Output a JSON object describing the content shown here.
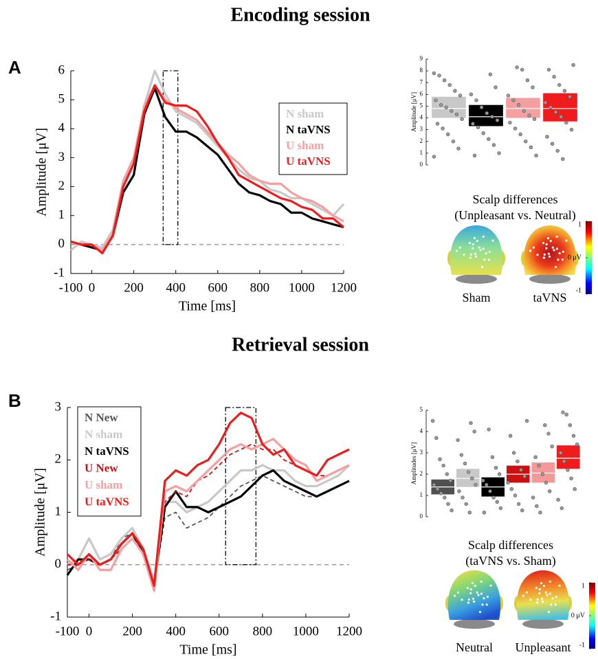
{
  "sections": [
    {
      "title": "Encoding session",
      "label": "A"
    },
    {
      "title": "Retrieval session",
      "label": "B"
    }
  ],
  "chart_data": [
    {
      "type": "line",
      "xlabel": "Time [ms]",
      "ylabel": "Amplitude [μV]",
      "xlim": [
        -100,
        1200
      ],
      "ylim": [
        -1,
        6
      ],
      "xticks": [
        -100,
        0,
        200,
        400,
        600,
        800,
        1000,
        1200
      ],
      "yticks": [
        -1,
        0,
        1,
        2,
        3,
        4,
        5,
        6
      ],
      "reference_line": 0,
      "highlight": {
        "x": [
          340,
          410
        ],
        "y": [
          0,
          6
        ]
      },
      "legend": "upper right",
      "x": [
        -100,
        -50,
        0,
        50,
        100,
        150,
        200,
        250,
        300,
        350,
        400,
        450,
        500,
        550,
        600,
        650,
        700,
        750,
        800,
        850,
        900,
        950,
        1000,
        1050,
        1100,
        1150,
        1200
      ],
      "series": [
        {
          "name": "N sham",
          "color": "#c8c8c8",
          "dashed": false,
          "values": [
            -0.2,
            0.1,
            0,
            -0.1,
            0.5,
            2.2,
            2.9,
            4.8,
            6.0,
            5.2,
            4.6,
            4.4,
            4.2,
            3.8,
            3.4,
            3.0,
            2.6,
            2.3,
            2.2,
            1.9,
            1.8,
            1.6,
            1.6,
            1.4,
            1.2,
            1.0,
            1.4
          ]
        },
        {
          "name": "N taVNS",
          "color": "#000000",
          "dashed": false,
          "values": [
            0.1,
            0,
            -0.1,
            -0.2,
            0.3,
            1.8,
            2.4,
            4.5,
            5.4,
            4.4,
            3.9,
            3.9,
            3.7,
            3.4,
            3.1,
            2.6,
            2.1,
            1.8,
            1.7,
            1.5,
            1.4,
            1.1,
            1.1,
            0.9,
            0.8,
            0.7,
            0.6
          ]
        },
        {
          "name": "U sham",
          "color": "#f4a0a0",
          "dashed": false,
          "values": [
            0.1,
            0,
            0,
            -0.2,
            0.4,
            2.2,
            3.0,
            4.8,
            5.5,
            5.0,
            4.7,
            4.5,
            4.3,
            3.9,
            3.5,
            3.1,
            2.8,
            2.4,
            2.2,
            2.1,
            2.1,
            1.8,
            1.6,
            1.5,
            1.3,
            1.0,
            0.8
          ]
        },
        {
          "name": "U taVNS",
          "color": "#ee1c1c",
          "dashed": false,
          "values": [
            0.1,
            0,
            0,
            -0.3,
            0.3,
            2.0,
            2.8,
            4.6,
            5.5,
            4.9,
            4.8,
            4.8,
            4.6,
            4.1,
            3.5,
            3.0,
            2.4,
            2.2,
            2.0,
            1.8,
            1.6,
            1.5,
            1.3,
            1.2,
            0.9,
            0.9,
            0.6
          ]
        }
      ]
    },
    {
      "type": "box",
      "ylabel": "Amplitude [μV]",
      "ylim": [
        0,
        9
      ],
      "yticks": [
        0,
        1,
        2,
        3,
        4,
        5,
        6,
        7,
        8,
        9
      ],
      "groups": [
        {
          "color": "#c8c8c8",
          "mean": 4.8,
          "ci": [
            4.0,
            5.8
          ],
          "points": [
            7.8,
            7.6,
            7.2,
            6.8,
            6.3,
            5.9,
            5.5,
            5.1,
            4.9,
            4.6,
            4.3,
            3.9,
            3.5,
            3.1,
            2.6,
            2.0,
            1.4,
            0.7
          ]
        },
        {
          "color": "#000000",
          "mean": 4.1,
          "ci": [
            3.3,
            5.1
          ],
          "points": [
            7.7,
            6.6,
            6.0,
            5.5,
            4.9,
            4.4,
            4.1,
            3.8,
            3.5,
            3.2,
            2.7,
            2.2,
            1.7,
            1.0,
            0.8
          ]
        },
        {
          "color": "#f4a0a0",
          "mean": 4.8,
          "ci": [
            4.0,
            5.7
          ],
          "points": [
            8.3,
            8.1,
            7.2,
            6.6,
            5.9,
            5.5,
            5.1,
            4.6,
            4.2,
            3.9,
            3.6,
            3.1,
            2.6,
            2.0,
            1.5,
            0.8
          ]
        },
        {
          "color": "#ee1c1c",
          "mean": 4.8,
          "ci": [
            3.7,
            6.1
          ],
          "points": [
            8.5,
            8.1,
            7.5,
            6.8,
            6.3,
            5.8,
            5.3,
            4.9,
            4.5,
            4.1,
            3.6,
            3.0,
            2.4,
            1.8,
            1.2,
            0.5
          ]
        }
      ]
    },
    {
      "type": "topomap",
      "title": [
        "Scalp differences",
        "(Unpleasant vs. Neutral)"
      ],
      "labels": [
        "Sham",
        "taVNS"
      ],
      "clim": [
        -1,
        1
      ],
      "cticks": [
        1,
        {
          "value": 0,
          "label": "0 μV"
        },
        -1
      ]
    },
    {
      "type": "line",
      "xlabel": "Time [ms]",
      "ylabel": "Amplitude [μV]",
      "xlim": [
        -100,
        1200
      ],
      "ylim": [
        -1,
        3
      ],
      "xticks": [
        -100,
        0,
        200,
        400,
        600,
        800,
        1000,
        1200
      ],
      "yticks": [
        -1,
        0,
        1,
        2,
        3
      ],
      "reference_line": 0,
      "highlight": {
        "x": [
          630,
          770
        ],
        "y": [
          0,
          3
        ]
      },
      "legend": "upper left",
      "x": [
        -100,
        -50,
        0,
        50,
        100,
        150,
        200,
        250,
        300,
        350,
        400,
        450,
        500,
        550,
        600,
        650,
        700,
        750,
        800,
        850,
        900,
        950,
        1000,
        1050,
        1100,
        1150,
        1200
      ],
      "series": [
        {
          "name": "N New",
          "color": "#555555",
          "dashed": true,
          "values": [
            -0.1,
            0,
            0.1,
            0,
            0.1,
            0.5,
            0.6,
            0.3,
            -0.4,
            0.9,
            1.0,
            0.7,
            0.8,
            0.9,
            1.1,
            1.3,
            1.5,
            1.6,
            1.7,
            1.6,
            1.5,
            1.4,
            1.3,
            1.3,
            1.4,
            1.5,
            1.6
          ]
        },
        {
          "name": "N sham",
          "color": "#c8c8c8",
          "dashed": false,
          "values": [
            0,
            0.1,
            0.5,
            0.1,
            0.2,
            0.5,
            0.7,
            0.3,
            -0.3,
            1.2,
            1.2,
            1.0,
            1.1,
            1.2,
            1.4,
            1.6,
            1.8,
            1.8,
            1.9,
            1.8,
            1.8,
            1.6,
            1.5,
            1.5,
            1.6,
            1.7,
            1.9
          ]
        },
        {
          "name": "N taVNS",
          "color": "#000000",
          "dashed": false,
          "values": [
            -0.2,
            0.1,
            0.1,
            0,
            0.1,
            0.4,
            0.6,
            0.2,
            -0.4,
            1.1,
            1.4,
            1.1,
            1.1,
            1.0,
            1.1,
            1.2,
            1.3,
            1.5,
            1.7,
            1.8,
            1.6,
            1.5,
            1.4,
            1.3,
            1.4,
            1.5,
            1.6
          ]
        },
        {
          "name": "U New",
          "color": "#cc1010",
          "dashed": true,
          "values": [
            0,
            0,
            0.1,
            0,
            0.1,
            0.3,
            0.5,
            0.3,
            -0.4,
            1.2,
            1.4,
            1.3,
            1.6,
            1.7,
            1.9,
            2.1,
            2.2,
            2.3,
            2.2,
            2.2,
            2.0,
            1.9,
            1.8,
            1.7,
            1.7,
            1.8,
            1.9
          ]
        },
        {
          "name": "U sham",
          "color": "#f4a0a0",
          "dashed": false,
          "values": [
            0.1,
            -0.1,
            0.2,
            -0.1,
            -0.1,
            0.3,
            0.5,
            0.2,
            -0.5,
            1.4,
            1.5,
            1.4,
            1.6,
            1.8,
            2.0,
            2.2,
            2.3,
            2.2,
            2.3,
            2.4,
            2.2,
            2.0,
            1.9,
            1.6,
            1.7,
            1.8,
            1.9
          ]
        },
        {
          "name": "U taVNS",
          "color": "#ee1c1c",
          "dashed": false,
          "values": [
            0.2,
            0,
            0.2,
            0,
            0.1,
            0.4,
            0.6,
            0.3,
            -0.4,
            1.6,
            1.8,
            1.7,
            1.9,
            2.0,
            2.3,
            2.7,
            2.9,
            2.8,
            2.3,
            2.1,
            2.2,
            1.9,
            1.8,
            1.7,
            2.0,
            2.1,
            2.2
          ]
        }
      ]
    },
    {
      "type": "box",
      "ylabel": "Amplitudes [μV]",
      "ylim": [
        0,
        5
      ],
      "yticks": [
        0,
        1,
        2,
        3,
        4,
        5
      ],
      "groups": [
        {
          "color": "#505050",
          "mean": 1.4,
          "ci": [
            1.05,
            1.75
          ],
          "points": [
            4.5,
            3.7,
            2.7,
            2.4,
            2.0,
            1.7,
            1.5,
            1.3,
            1.1,
            0.9,
            0.6,
            0.3
          ]
        },
        {
          "color": "#c8c8c8",
          "mean": 1.8,
          "ci": [
            1.4,
            2.25
          ],
          "points": [
            4.4,
            4.0,
            3.6,
            2.9,
            2.5,
            2.1,
            1.8,
            1.5,
            1.2,
            0.9,
            0.6,
            0.2
          ]
        },
        {
          "color": "#000000",
          "mean": 1.4,
          "ci": [
            0.95,
            1.85
          ],
          "points": [
            4.1,
            2.8,
            2.3,
            2.0,
            1.7,
            1.5,
            1.2,
            0.9,
            0.7,
            0.4,
            0.2
          ]
        },
        {
          "color": "#cc1010",
          "mean": 2.0,
          "ci": [
            1.6,
            2.4
          ],
          "points": [
            4.5,
            3.8,
            3.0,
            2.6,
            2.2,
            1.9,
            1.6,
            1.3,
            1.0,
            0.6,
            0.3
          ]
        },
        {
          "color": "#f49898",
          "mean": 2.05,
          "ci": [
            1.6,
            2.55
          ],
          "points": [
            4.3,
            3.9,
            3.3,
            2.8,
            2.4,
            2.0,
            1.6,
            1.2,
            0.9,
            0.5,
            0.2
          ]
        },
        {
          "color": "#ee1c1c",
          "mean": 2.75,
          "ci": [
            2.25,
            3.35
          ],
          "points": [
            4.9,
            4.8,
            4.3,
            3.8,
            3.4,
            3.0,
            2.6,
            2.2,
            1.8,
            1.3,
            0.8,
            0.4
          ]
        }
      ]
    },
    {
      "type": "topomap",
      "title": [
        "Scalp differences",
        "(taVNS vs. Sham)"
      ],
      "labels": [
        "Neutral",
        "Unpleasant"
      ],
      "clim": [
        -1,
        1
      ],
      "cticks": [
        1,
        {
          "value": 0,
          "label": "0 μV"
        },
        -1
      ]
    }
  ]
}
